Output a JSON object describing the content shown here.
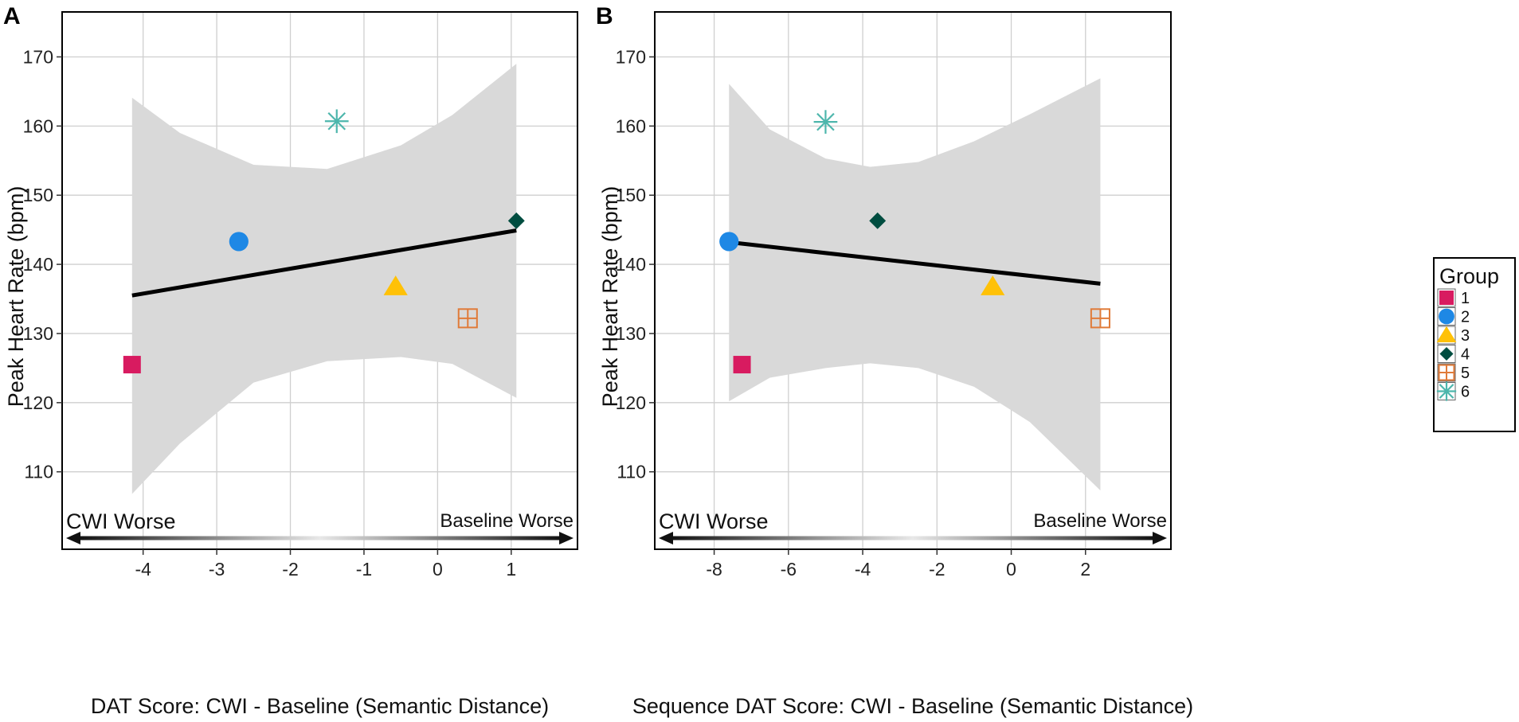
{
  "colors": {
    "band": "#d9d9d9",
    "grid": "#cfcfcf",
    "line": "#000000",
    "frame": "#000000"
  },
  "legend": {
    "title": "Group",
    "entries": [
      {
        "label": "1",
        "shape": "square",
        "color": "#d81b60"
      },
      {
        "label": "2",
        "shape": "circle",
        "color": "#1e88e5"
      },
      {
        "label": "3",
        "shape": "triangle",
        "color": "#ffc107"
      },
      {
        "label": "4",
        "shape": "diamond",
        "color": "#004d40"
      },
      {
        "label": "5",
        "shape": "square-plus",
        "color": "#e07b39"
      },
      {
        "label": "6",
        "shape": "asterisk",
        "color": "#4db6ac"
      }
    ]
  },
  "chart_data": [
    {
      "panel": "A",
      "type": "scatter",
      "title": "",
      "xlabel": "DAT Score: CWI - Baseline (Semantic Distance)",
      "ylabel": "Peak Heart Rate (bpm)",
      "xlim": [
        -5.1,
        1.9
      ],
      "ylim": [
        98.8,
        176.5
      ],
      "xticks": [
        -4,
        -3,
        -2,
        -1,
        0,
        1
      ],
      "yticks": [
        110,
        120,
        130,
        140,
        150,
        160,
        170
      ],
      "grid": true,
      "arrow_left_label": "CWI Worse",
      "arrow_right_label": "Baseline Worse",
      "points": [
        {
          "group": "1",
          "x": -4.15,
          "y": 125.5
        },
        {
          "group": "2",
          "x": -2.7,
          "y": 143.3
        },
        {
          "group": "3",
          "x": -0.57,
          "y": 136.8
        },
        {
          "group": "4",
          "x": 1.07,
          "y": 146.3
        },
        {
          "group": "5",
          "x": 0.41,
          "y": 132.2
        },
        {
          "group": "6",
          "x": -1.37,
          "y": 160.7
        }
      ],
      "fit_line": {
        "x": [
          -4.15,
          1.07
        ],
        "y": [
          135.5,
          144.9
        ]
      },
      "ci_band": {
        "x": [
          -4.15,
          -3.5,
          -2.5,
          -1.5,
          -0.5,
          0.2,
          1.07
        ],
        "upper": [
          164.1,
          159.0,
          154.4,
          153.8,
          157.2,
          161.6,
          169.0
        ],
        "lower": [
          106.8,
          114.1,
          122.9,
          126.0,
          126.6,
          125.6,
          120.7
        ]
      }
    },
    {
      "panel": "B",
      "type": "scatter",
      "title": "",
      "xlabel": "Sequence DAT Score: CWI - Baseline (Semantic Distance)",
      "ylabel": "Peak Heart Rate (bpm)",
      "xlim": [
        -9.6,
        4.3
      ],
      "ylim": [
        98.8,
        176.5
      ],
      "xticks": [
        -8,
        -6,
        -4,
        -2,
        0,
        2
      ],
      "yticks": [
        110,
        120,
        130,
        140,
        150,
        160,
        170
      ],
      "grid": true,
      "arrow_left_label": "CWI Worse",
      "arrow_right_label": "Baseline Worse",
      "points": [
        {
          "group": "1",
          "x": -7.25,
          "y": 125.5
        },
        {
          "group": "2",
          "x": -7.6,
          "y": 143.3
        },
        {
          "group": "3",
          "x": -0.5,
          "y": 136.8
        },
        {
          "group": "4",
          "x": -3.6,
          "y": 146.3
        },
        {
          "group": "5",
          "x": 2.4,
          "y": 132.2
        },
        {
          "group": "6",
          "x": -5.0,
          "y": 160.6
        }
      ],
      "fit_line": {
        "x": [
          -7.6,
          2.4
        ],
        "y": [
          143.2,
          137.2
        ]
      },
      "ci_band": {
        "x": [
          -7.6,
          -6.5,
          -5,
          -3.8,
          -2.5,
          -1,
          0.5,
          2.4
        ],
        "upper": [
          166.1,
          159.5,
          155.3,
          154.1,
          154.8,
          157.8,
          161.7,
          166.9
        ],
        "lower": [
          120.2,
          123.6,
          125.0,
          125.7,
          125.0,
          122.3,
          117.2,
          107.3
        ]
      }
    }
  ]
}
